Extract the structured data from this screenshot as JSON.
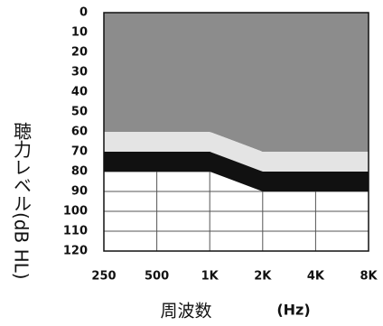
{
  "chart_data": {
    "type": "stacked_area",
    "categories": [
      "250",
      "500",
      "1K",
      "2K",
      "4K",
      "8K"
    ],
    "series": [
      {
        "color": "#8c8c8c",
        "values": [
          60,
          60,
          60,
          70,
          70,
          70
        ]
      },
      {
        "color": "#e4e4e4",
        "values": [
          10,
          10,
          10,
          10,
          10,
          10
        ]
      },
      {
        "color": "#111111",
        "values": [
          10,
          10,
          10,
          10,
          10,
          10
        ]
      }
    ],
    "ylim": [
      0,
      120
    ],
    "yinverted": true,
    "yticks": [
      0,
      10,
      20,
      30,
      40,
      50,
      60,
      70,
      80,
      90,
      100,
      110,
      120
    ],
    "grid": true,
    "ylabel": "聴力レベル(dB HL)",
    "xlabel": "周波数",
    "xunit": "(Hz)"
  }
}
